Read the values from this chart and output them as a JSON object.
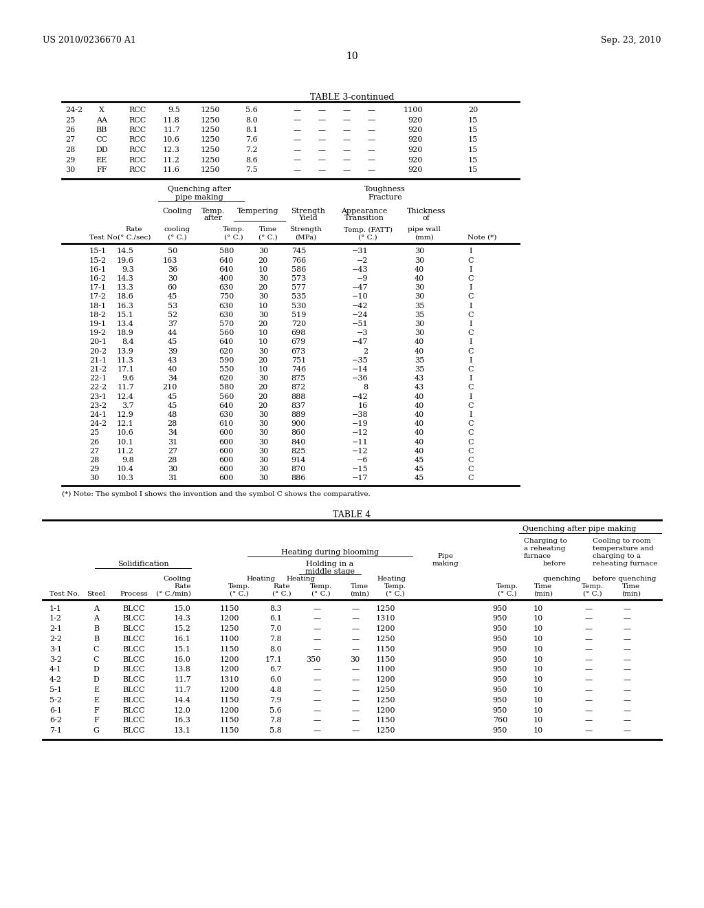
{
  "header_left": "US 2010/0236670 A1",
  "header_right": "Sep. 23, 2010",
  "page_number": "10",
  "table3_title": "TABLE 3-continued",
  "table3_top_rows": [
    [
      "24-2",
      "X",
      "RCC",
      "9.5",
      "1250",
      "5.6",
      "—",
      "—",
      "—",
      "—",
      "1100",
      "20"
    ],
    [
      "25",
      "AA",
      "RCC",
      "11.8",
      "1250",
      "8.0",
      "—",
      "—",
      "—",
      "—",
      "920",
      "15"
    ],
    [
      "26",
      "BB",
      "RCC",
      "11.7",
      "1250",
      "8.1",
      "—",
      "—",
      "—",
      "—",
      "920",
      "15"
    ],
    [
      "27",
      "CC",
      "RCC",
      "10.6",
      "1250",
      "7.6",
      "—",
      "—",
      "—",
      "—",
      "920",
      "15"
    ],
    [
      "28",
      "DD",
      "RCC",
      "12.3",
      "1250",
      "7.2",
      "—",
      "—",
      "—",
      "—",
      "920",
      "15"
    ],
    [
      "29",
      "EE",
      "RCC",
      "11.2",
      "1250",
      "8.6",
      "—",
      "—",
      "—",
      "—",
      "920",
      "15"
    ],
    [
      "30",
      "FF",
      "RCC",
      "11.6",
      "1250",
      "7.5",
      "—",
      "—",
      "—",
      "—",
      "920",
      "15"
    ]
  ],
  "table3_bottom_rows": [
    [
      "15-1",
      "14.5",
      "50",
      "580",
      "30",
      "745",
      "−31",
      "30",
      "I"
    ],
    [
      "15-2",
      "19.6",
      "163",
      "640",
      "20",
      "766",
      "−2",
      "30",
      "C"
    ],
    [
      "16-1",
      "9.3",
      "36",
      "640",
      "10",
      "586",
      "−43",
      "40",
      "I"
    ],
    [
      "16-2",
      "14.3",
      "30",
      "400",
      "30",
      "573",
      "−9",
      "40",
      "C"
    ],
    [
      "17-1",
      "13.3",
      "60",
      "630",
      "20",
      "577",
      "−47",
      "30",
      "I"
    ],
    [
      "17-2",
      "18.6",
      "45",
      "750",
      "30",
      "535",
      "−10",
      "30",
      "C"
    ],
    [
      "18-1",
      "16.3",
      "53",
      "630",
      "10",
      "530",
      "−42",
      "35",
      "I"
    ],
    [
      "18-2",
      "15.1",
      "52",
      "630",
      "30",
      "519",
      "−24",
      "35",
      "C"
    ],
    [
      "19-1",
      "13.4",
      "37",
      "570",
      "20",
      "720",
      "−51",
      "30",
      "I"
    ],
    [
      "19-2",
      "18.9",
      "44",
      "560",
      "10",
      "698",
      "−3",
      "30",
      "C"
    ],
    [
      "20-1",
      "8.4",
      "45",
      "640",
      "10",
      "679",
      "−47",
      "40",
      "I"
    ],
    [
      "20-2",
      "13.9",
      "39",
      "620",
      "30",
      "673",
      "2",
      "40",
      "C"
    ],
    [
      "21-1",
      "11.3",
      "43",
      "590",
      "20",
      "751",
      "−35",
      "35",
      "I"
    ],
    [
      "21-2",
      "17.1",
      "40",
      "550",
      "10",
      "746",
      "−14",
      "35",
      "C"
    ],
    [
      "22-1",
      "9.6",
      "34",
      "620",
      "30",
      "875",
      "−36",
      "43",
      "I"
    ],
    [
      "22-2",
      "11.7",
      "210",
      "580",
      "20",
      "872",
      "8",
      "43",
      "C"
    ],
    [
      "23-1",
      "12.4",
      "45",
      "560",
      "20",
      "888",
      "−42",
      "40",
      "I"
    ],
    [
      "23-2",
      "3.7",
      "45",
      "640",
      "20",
      "837",
      "16",
      "40",
      "C"
    ],
    [
      "24-1",
      "12.9",
      "48",
      "630",
      "30",
      "889",
      "−38",
      "40",
      "I"
    ],
    [
      "24-2",
      "12.1",
      "28",
      "610",
      "30",
      "900",
      "−19",
      "40",
      "C"
    ],
    [
      "25",
      "10.6",
      "34",
      "600",
      "30",
      "860",
      "−12",
      "40",
      "C"
    ],
    [
      "26",
      "10.1",
      "31",
      "600",
      "30",
      "840",
      "−11",
      "40",
      "C"
    ],
    [
      "27",
      "11.2",
      "27",
      "600",
      "30",
      "825",
      "−12",
      "40",
      "C"
    ],
    [
      "28",
      "9.8",
      "28",
      "600",
      "30",
      "914",
      "−6",
      "45",
      "C"
    ],
    [
      "29",
      "10.4",
      "30",
      "600",
      "30",
      "870",
      "−15",
      "45",
      "C"
    ],
    [
      "30",
      "10.3",
      "31",
      "600",
      "30",
      "886",
      "−17",
      "45",
      "C"
    ]
  ],
  "table3_note": "(*) Note: The symbol I shows the invention and the symbol C shows the comparative.",
  "table4_title": "TABLE 4",
  "table4_rows": [
    [
      "1-1",
      "A",
      "BLCC",
      "15.0",
      "1150",
      "8.3",
      "—",
      "—",
      "1250",
      "950",
      "10",
      "—",
      "—"
    ],
    [
      "1-2",
      "A",
      "BLCC",
      "14.3",
      "1200",
      "6.1",
      "—",
      "—",
      "1310",
      "950",
      "10",
      "—",
      "—"
    ],
    [
      "2-1",
      "B",
      "BLCC",
      "15.2",
      "1250",
      "7.0",
      "—",
      "—",
      "1200",
      "950",
      "10",
      "—",
      "—"
    ],
    [
      "2-2",
      "B",
      "BLCC",
      "16.1",
      "1100",
      "7.8",
      "—",
      "—",
      "1250",
      "950",
      "10",
      "—",
      "—"
    ],
    [
      "3-1",
      "C",
      "BLCC",
      "15.1",
      "1150",
      "8.0",
      "—",
      "—",
      "1150",
      "950",
      "10",
      "—",
      "—"
    ],
    [
      "3-2",
      "C",
      "BLCC",
      "16.0",
      "1200",
      "17.1",
      "350",
      "30",
      "1150",
      "950",
      "10",
      "—",
      "—"
    ],
    [
      "4-1",
      "D",
      "BLCC",
      "13.8",
      "1200",
      "6.7",
      "—",
      "—",
      "1100",
      "950",
      "10",
      "—",
      "—"
    ],
    [
      "4-2",
      "D",
      "BLCC",
      "11.7",
      "1310",
      "6.0",
      "—",
      "—",
      "1200",
      "950",
      "10",
      "—",
      "—"
    ],
    [
      "5-1",
      "E",
      "BLCC",
      "11.7",
      "1200",
      "4.8",
      "—",
      "—",
      "1250",
      "950",
      "10",
      "—",
      "—"
    ],
    [
      "5-2",
      "E",
      "BLCC",
      "14.4",
      "1150",
      "7.9",
      "—",
      "—",
      "1250",
      "950",
      "10",
      "—",
      "—"
    ],
    [
      "6-1",
      "F",
      "BLCC",
      "12.0",
      "1200",
      "5.6",
      "—",
      "—",
      "1200",
      "950",
      "10",
      "—",
      "—"
    ],
    [
      "6-2",
      "F",
      "BLCC",
      "16.3",
      "1150",
      "7.8",
      "—",
      "—",
      "1150",
      "760",
      "10",
      "—",
      "—"
    ],
    [
      "7-1",
      "G",
      "BLCC",
      "13.1",
      "1150",
      "5.8",
      "—",
      "—",
      "1250",
      "950",
      "10",
      "—",
      "—"
    ]
  ]
}
